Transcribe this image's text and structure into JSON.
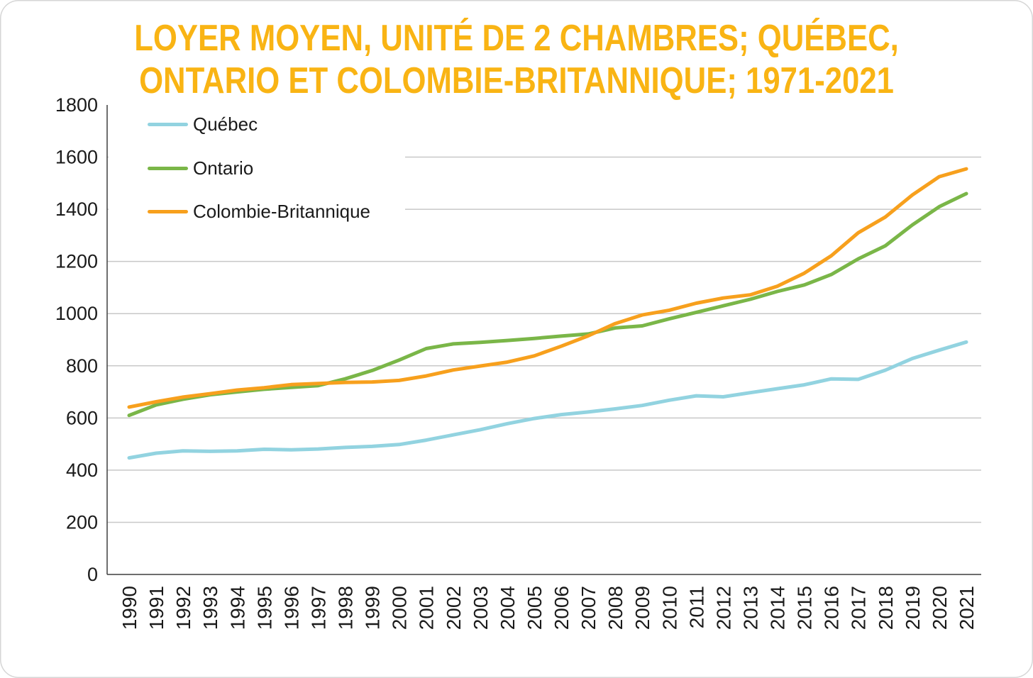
{
  "title": {
    "line1": "LOYER MOYEN, UNITÉ DE 2 CHAMBRES; QUÉBEC,",
    "line2": "ONTARIO ET COLOMBIE-BRITANNIQUE; 1971-2021",
    "color": "#f9b414"
  },
  "chart_data": {
    "type": "line",
    "title": "Loyer moyen, unité de 2 chambres; Québec, Ontario et Colombie-Britannique; 1971-2021",
    "x": [
      1990,
      1991,
      1992,
      1993,
      1994,
      1995,
      1996,
      1997,
      1998,
      1999,
      2000,
      2001,
      2002,
      2003,
      2004,
      2005,
      2006,
      2007,
      2008,
      2009,
      2010,
      2011,
      2012,
      2013,
      2014,
      2015,
      2016,
      2017,
      2018,
      2019,
      2020,
      2021
    ],
    "series": [
      {
        "name": "Québec",
        "color": "#92d3e0",
        "values": [
          447,
          465,
          474,
          472,
          474,
          480,
          478,
          481,
          487,
          491,
          498,
          515,
          535,
          555,
          578,
          598,
          613,
          623,
          635,
          648,
          668,
          685,
          681,
          697,
          712,
          727,
          750,
          748,
          783,
          828,
          860,
          891
        ]
      },
      {
        "name": "Ontario",
        "color": "#7ab648",
        "values": [
          610,
          650,
          672,
          689,
          700,
          710,
          717,
          724,
          750,
          782,
          822,
          866,
          884,
          890,
          897,
          905,
          914,
          922,
          945,
          953,
          980,
          1005,
          1030,
          1055,
          1085,
          1110,
          1150,
          1210,
          1260,
          1340,
          1410,
          1460
        ]
      },
      {
        "name": "Colombie-Britannique",
        "color": "#f7a01d",
        "values": [
          642,
          662,
          680,
          693,
          707,
          716,
          728,
          732,
          736,
          738,
          744,
          761,
          784,
          799,
          814,
          838,
          875,
          915,
          962,
          995,
          1013,
          1040,
          1060,
          1072,
          1105,
          1155,
          1222,
          1310,
          1370,
          1455,
          1525,
          1555
        ]
      }
    ],
    "xlabel": "",
    "ylabel": "",
    "ylim": [
      0,
      1800
    ],
    "y_ticks": [
      0,
      200,
      400,
      600,
      800,
      1000,
      1200,
      1400,
      1600,
      1800
    ],
    "gridline_values": [
      200,
      400,
      600,
      800,
      1000,
      1200,
      1400,
      1600
    ],
    "grid": "horizontal",
    "legend_position": "top-left-inside",
    "axis_color": "#3f3f3f",
    "gridline_color": "#c8c8c8",
    "tick_label_color": "#1a1a1a"
  }
}
